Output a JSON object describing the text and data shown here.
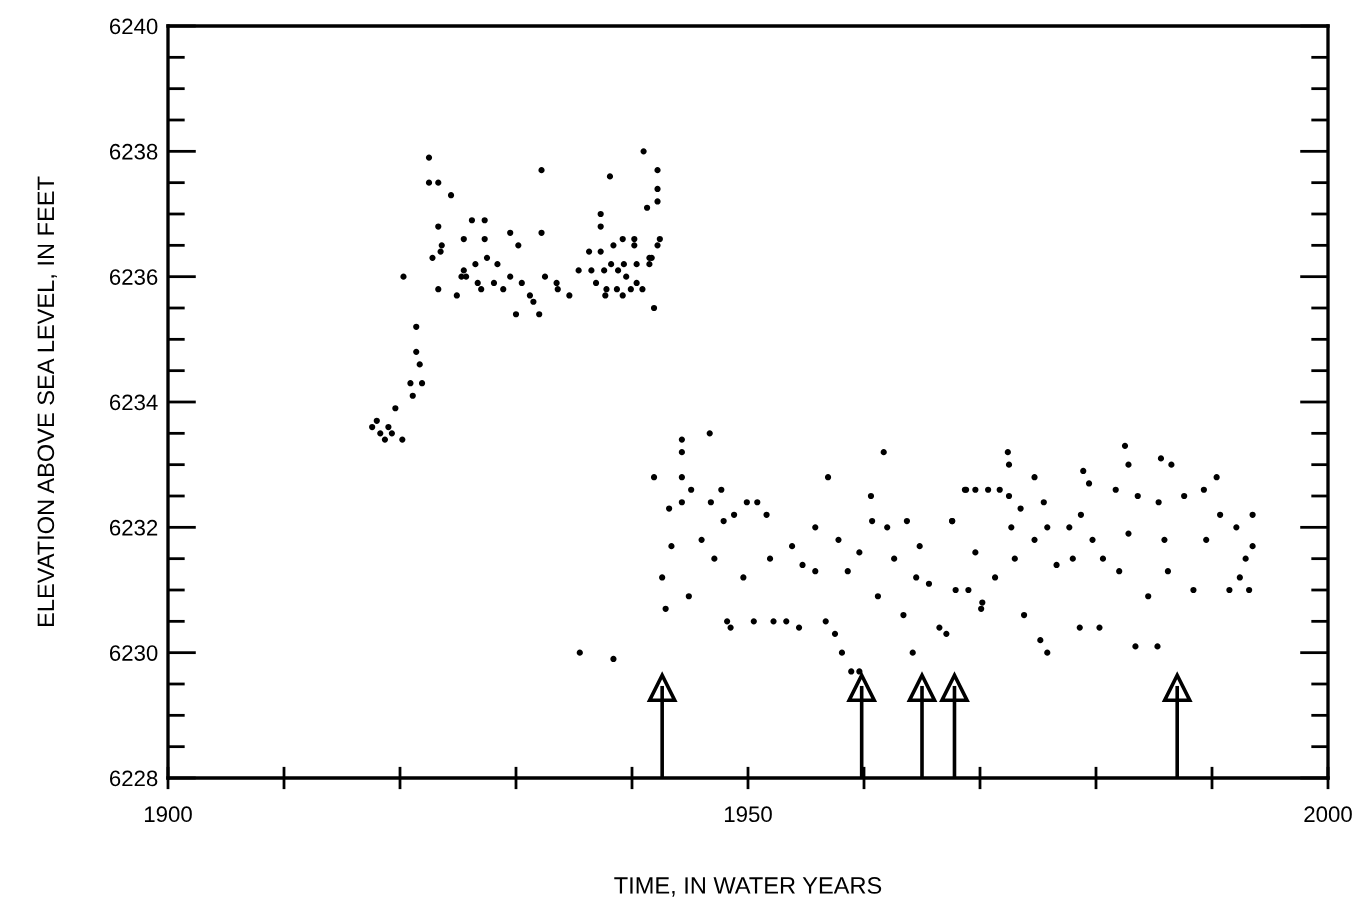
{
  "chart_data": {
    "type": "scatter",
    "xlabel": "TIME, IN WATER YEARS",
    "ylabel": "ELEVATION ABOVE SEA LEVEL, IN FEET",
    "xlim": [
      1900,
      2000
    ],
    "ylim": [
      6228,
      6240
    ],
    "xticks": [
      1900,
      {
        "value": 1910,
        "label": null
      },
      {
        "value": 1920,
        "label": null
      },
      {
        "value": 1930,
        "label": null
      },
      {
        "value": 1940,
        "label": null
      },
      1950,
      {
        "value": 1960,
        "label": null
      },
      {
        "value": 1970,
        "label": null
      },
      {
        "value": 1980,
        "label": null
      },
      {
        "value": 1990,
        "label": null
      },
      2000
    ],
    "yticks": [
      6228,
      {
        "value": 6228.5,
        "label": null
      },
      {
        "value": 6229,
        "label": null
      },
      {
        "value": 6229.5,
        "label": null
      },
      6230,
      {
        "value": 6230.5,
        "label": null
      },
      {
        "value": 6231,
        "label": null
      },
      {
        "value": 6231.5,
        "label": null
      },
      6232,
      {
        "value": 6232.5,
        "label": null
      },
      {
        "value": 6233,
        "label": null
      },
      {
        "value": 6233.5,
        "label": null
      },
      6234,
      {
        "value": 6234.5,
        "label": null
      },
      {
        "value": 6235,
        "label": null
      },
      {
        "value": 6235.5,
        "label": null
      },
      6236,
      {
        "value": 6236.5,
        "label": null
      },
      {
        "value": 6237,
        "label": null
      },
      {
        "value": 6237.5,
        "label": null
      },
      6238,
      {
        "value": 6238.5,
        "label": null
      },
      {
        "value": 6239,
        "label": null
      },
      {
        "value": 6239.5,
        "label": null
      },
      6240
    ],
    "grid": false,
    "legend": false,
    "marker": "circle",
    "ref_lines": [
      {
        "axis": "x",
        "value": 1942.6,
        "color": "#000000"
      },
      {
        "axis": "x",
        "value": 1959.8,
        "color": "#000000"
      },
      {
        "axis": "x",
        "value": 1965.0,
        "color": "#000000"
      },
      {
        "axis": "x",
        "value": 1967.8,
        "color": "#000000"
      },
      {
        "axis": "x",
        "value": 1987.0,
        "color": "#000000"
      }
    ],
    "series": [
      {
        "color": "#000000",
        "x": [
          1917.6,
          1918.0,
          1918.3,
          1918.7,
          1919.0,
          1919.3,
          1919.6,
          1920.2,
          1921.1,
          1920.9,
          1921.9,
          1921.7,
          1921.4,
          1921.4,
          1920.3,
          1922.5,
          1922.5,
          1923.3,
          1924.4,
          1923.3,
          1923.6,
          1923.5,
          1922.8,
          1923.3,
          1924.9,
          1925.5,
          1926.2,
          1927.3,
          1927.3,
          1926.5,
          1927.5,
          1928.4,
          1925.5,
          1925.3,
          1925.7,
          1926.7,
          1927.0,
          1928.1,
          1928.9,
          1929.5,
          1929.5,
          1930.2,
          1930.5,
          1931.2,
          1931.5,
          1932.0,
          1930.0,
          1932.2,
          1932.2,
          1932.5,
          1933.5,
          1933.6,
          1934.6,
          1935.4,
          1936.3,
          1937.3,
          1937.3,
          1937.3,
          1938.1,
          1936.5,
          1937.6,
          1938.4,
          1939.2,
          1940.2,
          1940.2,
          1938.2,
          1938.8,
          1939.3,
          1940.4,
          1941.5,
          1941.7,
          1937.8,
          1938.7,
          1939.2,
          1939.9,
          1940.4,
          1940.9,
          1939.5,
          1941.0,
          1942.2,
          1942.2,
          1942.2,
          1941.3,
          1942.4,
          1942.2,
          1941.5,
          1941.9,
          1936.9,
          1937.7,
          1935.5,
          1938.4,
          1941.9,
          1943.2,
          1942.6,
          1942.9,
          1943.4,
          1944.3,
          1944.3,
          1944.3,
          1945.1,
          1944.3,
          1944.9,
          1946.7,
          1946.8,
          1946.0,
          1947.1,
          1947.7,
          1947.9,
          1948.2,
          1948.5,
          1948.8,
          1949.9,
          1950.8,
          1949.6,
          1950.5,
          1951.6,
          1951.9,
          1952.2,
          1953.3,
          1953.8,
          1954.7,
          1954.4,
          1955.8,
          1955.8,
          1956.7,
          1956.9,
          1957.8,
          1957.5,
          1958.1,
          1958.9,
          1959.6,
          1958.6,
          1959.6,
          1960.6,
          1960.7,
          1961.2,
          1961.7,
          1962.0,
          1962.6,
          1963.4,
          1963.7,
          1964.2,
          1964.8,
          1964.5,
          1965.6,
          1966.5,
          1967.6,
          1967.1,
          1968.7,
          1969.0,
          1969.6,
          1970.1,
          1967.6,
          1968.8,
          1969.6,
          1970.7,
          1971.7,
          1972.4,
          1972.5,
          1972.5,
          1972.7,
          1967.9,
          1970.2,
          1971.3,
          1973.5,
          1973.0,
          1973.8,
          1974.7,
          1974.7,
          1975.2,
          1975.8,
          1975.5,
          1975.8,
          1976.6,
          1977.7,
          1978.0,
          1978.6,
          1978.9,
          1978.7,
          1979.4,
          1979.7,
          1980.3,
          1980.6,
          1981.7,
          1982.0,
          1982.5,
          1982.8,
          1982.8,
          1983.6,
          1983.4,
          1984.5,
          1985.3,
          1985.6,
          1985.4,
          1986.5,
          1985.9,
          1986.2,
          1987.6,
          1988.4,
          1989.3,
          1989.5,
          1990.4,
          1990.7,
          1991.5,
          1992.1,
          1992.4,
          1993.2,
          1993.5,
          1993.5,
          1992.9
        ],
        "values": [
          6233.6,
          6233.7,
          6233.5,
          6233.4,
          6233.6,
          6233.5,
          6233.9,
          6233.4,
          6234.1,
          6234.3,
          6234.3,
          6234.6,
          6234.8,
          6235.2,
          6236.0,
          6237.9,
          6237.5,
          6237.5,
          6237.3,
          6236.8,
          6236.5,
          6236.4,
          6236.3,
          6235.8,
          6235.7,
          6236.6,
          6236.9,
          6236.9,
          6236.6,
          6236.2,
          6236.3,
          6236.2,
          6236.1,
          6236.0,
          6236.0,
          6235.9,
          6235.8,
          6235.9,
          6235.8,
          6236.0,
          6236.7,
          6236.5,
          6235.9,
          6235.7,
          6235.6,
          6235.4,
          6235.4,
          6237.7,
          6236.7,
          6236.0,
          6235.9,
          6235.8,
          6235.7,
          6236.1,
          6236.4,
          6236.4,
          6236.8,
          6237.0,
          6237.6,
          6236.1,
          6236.1,
          6236.5,
          6236.6,
          6236.6,
          6236.5,
          6236.2,
          6236.1,
          6236.2,
          6236.2,
          6236.2,
          6236.3,
          6235.8,
          6235.8,
          6235.7,
          6235.8,
          6235.9,
          6235.8,
          6236.0,
          6238.0,
          6237.7,
          6237.4,
          6237.2,
          6237.1,
          6236.6,
          6236.5,
          6236.3,
          6235.5,
          6235.9,
          6235.7,
          6230.0,
          6229.9,
          6232.8,
          6232.3,
          6231.2,
          6230.7,
          6231.7,
          6233.4,
          6233.2,
          6232.8,
          6232.6,
          6232.4,
          6230.9,
          6233.5,
          6232.4,
          6231.8,
          6231.5,
          6232.6,
          6232.1,
          6230.5,
          6230.4,
          6232.2,
          6232.4,
          6232.4,
          6231.2,
          6230.5,
          6232.2,
          6231.5,
          6230.5,
          6230.5,
          6231.7,
          6231.4,
          6230.4,
          6232.0,
          6231.3,
          6230.5,
          6232.8,
          6231.8,
          6230.3,
          6230.0,
          6229.7,
          6229.7,
          6231.3,
          6231.6,
          6232.5,
          6232.1,
          6230.9,
          6233.2,
          6232.0,
          6231.5,
          6230.6,
          6232.1,
          6230.0,
          6231.7,
          6231.2,
          6231.1,
          6230.4,
          6232.1,
          6230.3,
          6232.6,
          6231.0,
          6231.6,
          6230.7,
          6232.1,
          6232.6,
          6232.6,
          6232.6,
          6232.6,
          6233.2,
          6233.0,
          6232.5,
          6232.0,
          6231.0,
          6230.8,
          6231.2,
          6232.3,
          6231.5,
          6230.6,
          6232.8,
          6231.8,
          6230.2,
          6230.0,
          6232.4,
          6232.0,
          6231.4,
          6232.0,
          6231.5,
          6230.4,
          6232.9,
          6232.2,
          6232.7,
          6231.8,
          6230.4,
          6231.5,
          6232.6,
          6231.3,
          6233.3,
          6233.0,
          6231.9,
          6232.5,
          6230.1,
          6230.9,
          6230.1,
          6233.1,
          6232.4,
          6233.0,
          6231.8,
          6231.3,
          6232.5,
          6231.0,
          6232.6,
          6231.8,
          6232.8,
          6232.2,
          6231.0,
          6232.0,
          6231.2,
          6231.0,
          6232.2,
          6231.7,
          6231.5
        ]
      }
    ]
  }
}
